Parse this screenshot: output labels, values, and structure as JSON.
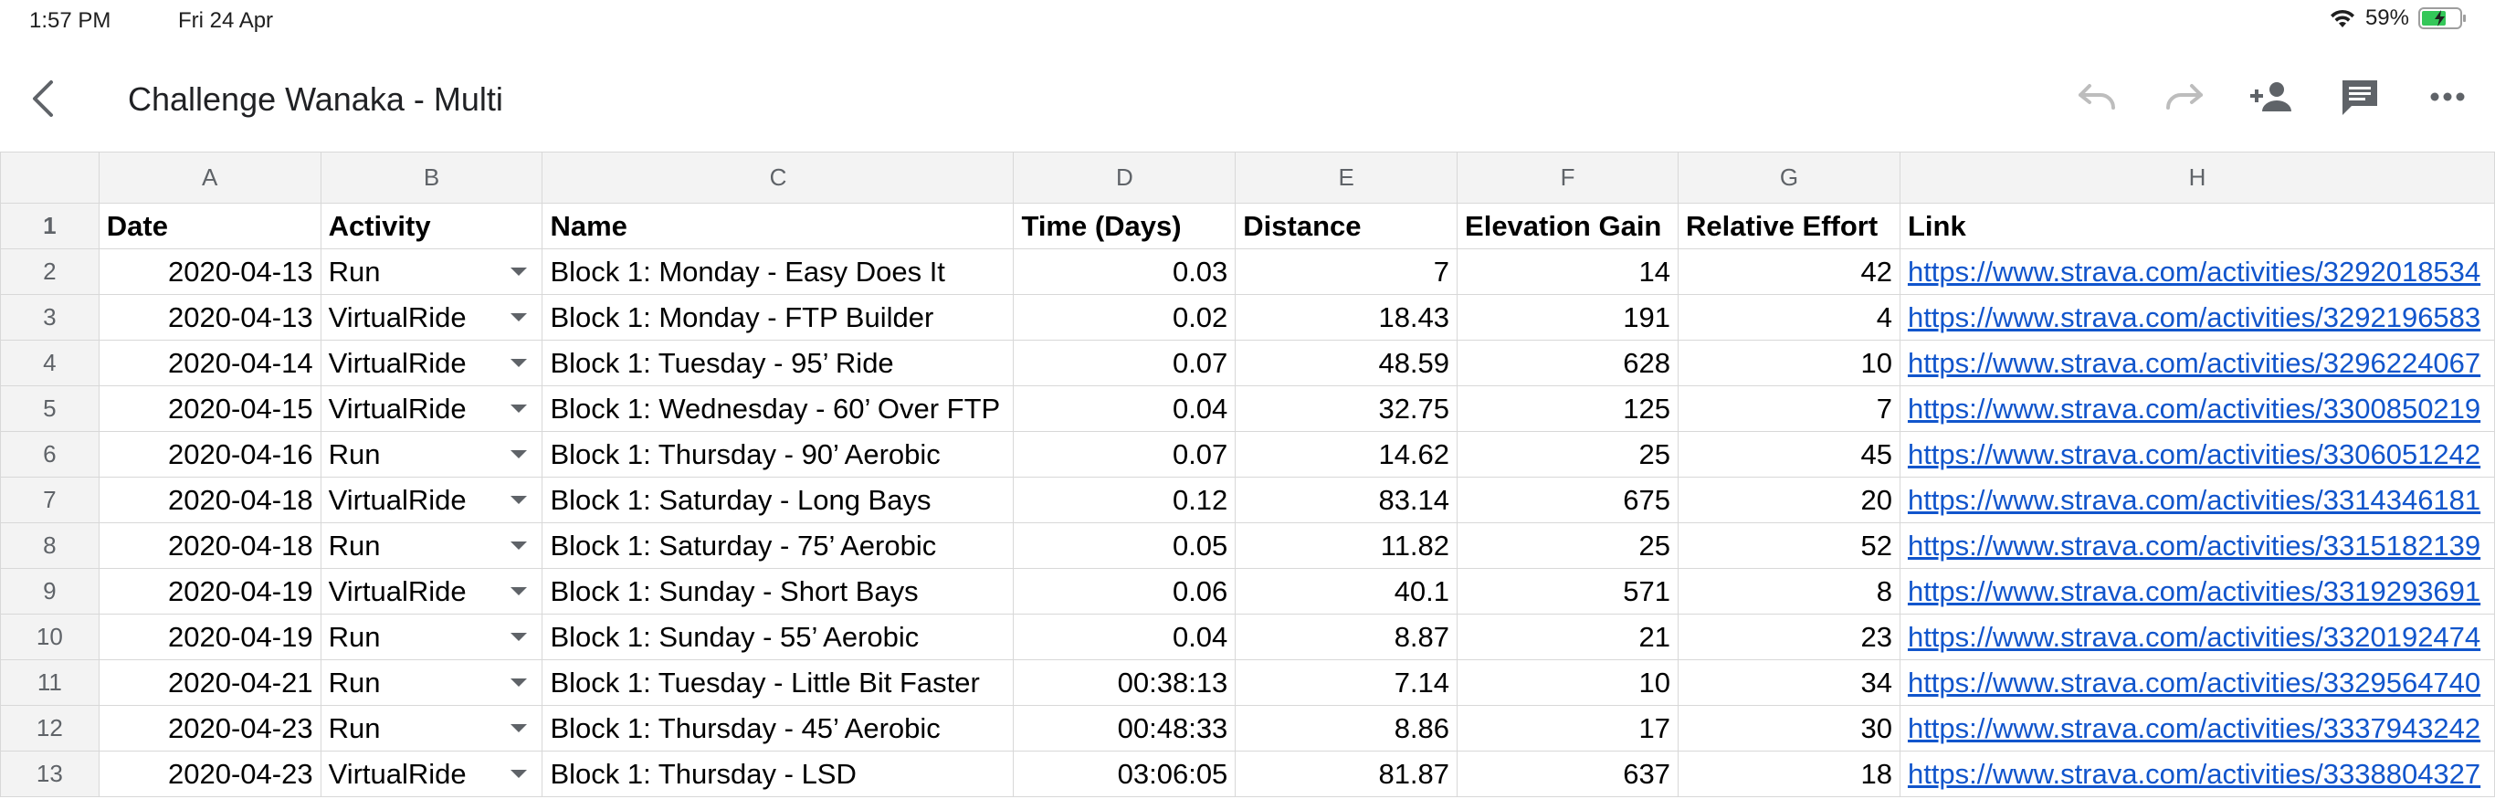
{
  "status": {
    "time": "1:57 PM",
    "date": "Fri 24 Apr",
    "battery": "59%"
  },
  "header": {
    "title": "Challenge Wanaka - Multi"
  },
  "icons": {
    "back": "back-arrow-icon",
    "undo": "undo-icon",
    "redo": "redo-icon",
    "share": "add-person-icon",
    "comment": "comment-icon",
    "more": "more-horizontal-icon"
  },
  "colors": {
    "link": "#1155cc",
    "header_bg": "#f3f3f3",
    "gridline": "#d8d8d8"
  },
  "sheet": {
    "col_letters": [
      "A",
      "B",
      "C",
      "D",
      "E",
      "F",
      "G",
      "H"
    ],
    "headers": [
      "Date",
      "Activity",
      "Name",
      "Time (Days)",
      "Distance",
      "Elevation Gain",
      "Relative Effort",
      "Link"
    ],
    "rows": [
      {
        "num": "2",
        "date": "2020-04-13",
        "activity": "Run",
        "name": "Block 1: Monday - Easy Does It",
        "time": "0.03",
        "distance": "7",
        "elev": "14",
        "effort": "42",
        "link": "https://www.strava.com/activities/3292018534"
      },
      {
        "num": "3",
        "date": "2020-04-13",
        "activity": "VirtualRide",
        "name": "Block 1: Monday - FTP Builder",
        "time": "0.02",
        "distance": "18.43",
        "elev": "191",
        "effort": "4",
        "link": "https://www.strava.com/activities/3292196583"
      },
      {
        "num": "4",
        "date": "2020-04-14",
        "activity": "VirtualRide",
        "name": "Block 1: Tuesday - 95’ Ride",
        "time": "0.07",
        "distance": "48.59",
        "elev": "628",
        "effort": "10",
        "link": "https://www.strava.com/activities/3296224067"
      },
      {
        "num": "5",
        "date": "2020-04-15",
        "activity": "VirtualRide",
        "name": "Block 1: Wednesday - 60’ Over FTP",
        "time": "0.04",
        "distance": "32.75",
        "elev": "125",
        "effort": "7",
        "link": "https://www.strava.com/activities/3300850219"
      },
      {
        "num": "6",
        "date": "2020-04-16",
        "activity": "Run",
        "name": "Block 1: Thursday - 90’ Aerobic",
        "time": "0.07",
        "distance": "14.62",
        "elev": "25",
        "effort": "45",
        "link": "https://www.strava.com/activities/3306051242"
      },
      {
        "num": "7",
        "date": "2020-04-18",
        "activity": "VirtualRide",
        "name": "Block 1: Saturday - Long Bays",
        "time": "0.12",
        "distance": "83.14",
        "elev": "675",
        "effort": "20",
        "link": "https://www.strava.com/activities/3314346181"
      },
      {
        "num": "8",
        "date": "2020-04-18",
        "activity": "Run",
        "name": "Block 1: Saturday - 75’ Aerobic",
        "time": "0.05",
        "distance": "11.82",
        "elev": "25",
        "effort": "52",
        "link": "https://www.strava.com/activities/3315182139"
      },
      {
        "num": "9",
        "date": "2020-04-19",
        "activity": "VirtualRide",
        "name": "Block 1: Sunday - Short Bays",
        "time": "0.06",
        "distance": "40.1",
        "elev": "571",
        "effort": "8",
        "link": "https://www.strava.com/activities/3319293691"
      },
      {
        "num": "10",
        "date": "2020-04-19",
        "activity": "Run",
        "name": "Block 1: Sunday - 55’ Aerobic",
        "time": "0.04",
        "distance": "8.87",
        "elev": "21",
        "effort": "23",
        "link": "https://www.strava.com/activities/3320192474"
      },
      {
        "num": "11",
        "date": "2020-04-21",
        "activity": "Run",
        "name": "Block 1: Tuesday - Little Bit Faster",
        "time": "00:38:13",
        "distance": "7.14",
        "elev": "10",
        "effort": "34",
        "link": "https://www.strava.com/activities/3329564740"
      },
      {
        "num": "12",
        "date": "2020-04-23",
        "activity": "Run",
        "name": "Block 1: Thursday - 45’ Aerobic",
        "time": "00:48:33",
        "distance": "8.86",
        "elev": "17",
        "effort": "30",
        "link": "https://www.strava.com/activities/3337943242"
      },
      {
        "num": "13",
        "date": "2020-04-23",
        "activity": "VirtualRide",
        "name": "Block 1: Thursday - LSD",
        "time": "03:06:05",
        "distance": "81.87",
        "elev": "637",
        "effort": "18",
        "link": "https://www.strava.com/activities/3338804327"
      }
    ]
  }
}
